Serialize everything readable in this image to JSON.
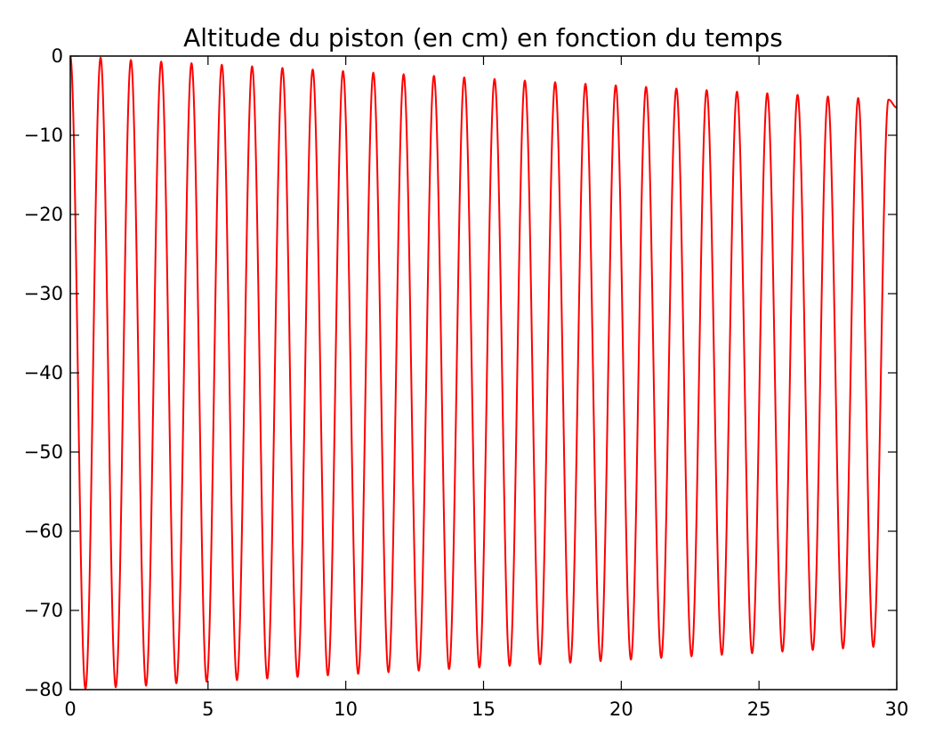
{
  "chart_data": {
    "type": "line",
    "title": "Altitude du piston (en cm) en fonction du temps",
    "xlabel": "",
    "ylabel": "",
    "xlim": [
      0,
      30
    ],
    "ylim": [
      -80,
      0
    ],
    "x_ticks": [
      "0",
      "5",
      "10",
      "15",
      "20",
      "25",
      "30"
    ],
    "y_ticks": [
      "0",
      "−10",
      "−20",
      "−30",
      "−40",
      "−50",
      "−60",
      "−70",
      "−80"
    ],
    "grid": false,
    "legend": "none",
    "series": [
      {
        "color": "#ff0000",
        "line_width": 2,
        "x": [
          0.0,
          0.55,
          1.1,
          1.65,
          2.2,
          2.75,
          3.3,
          3.85,
          4.4,
          4.95,
          5.5,
          6.05,
          6.6,
          7.15,
          7.7,
          8.25,
          8.8,
          9.35,
          9.9,
          10.45,
          11.0,
          11.55,
          12.1,
          12.65,
          13.2,
          13.75,
          14.3,
          14.85,
          15.4,
          15.95,
          16.5,
          17.05,
          17.6,
          18.15,
          18.7,
          19.25,
          19.8,
          20.35,
          20.9,
          21.45,
          22.0,
          22.55,
          23.1,
          23.65,
          24.2,
          24.75,
          25.3,
          25.85,
          26.4,
          26.95,
          27.5,
          28.05,
          28.6,
          29.15,
          29.7,
          30.0
        ],
        "y": [
          0.0,
          -79.9,
          -0.2,
          -79.7,
          -0.5,
          -79.5,
          -0.7,
          -79.2,
          -0.9,
          -79.0,
          -1.1,
          -78.8,
          -1.3,
          -78.6,
          -1.5,
          -78.4,
          -1.7,
          -78.2,
          -1.9,
          -78.0,
          -2.1,
          -77.8,
          -2.3,
          -77.6,
          -2.5,
          -77.4,
          -2.7,
          -77.2,
          -2.9,
          -77.0,
          -3.1,
          -76.8,
          -3.3,
          -76.6,
          -3.5,
          -76.4,
          -3.7,
          -76.2,
          -3.9,
          -76.0,
          -4.1,
          -75.8,
          -4.3,
          -75.6,
          -4.5,
          -75.4,
          -4.7,
          -75.2,
          -4.9,
          -75.0,
          -5.1,
          -74.8,
          -5.3,
          -74.6,
          -5.5,
          -6.5
        ]
      }
    ]
  }
}
